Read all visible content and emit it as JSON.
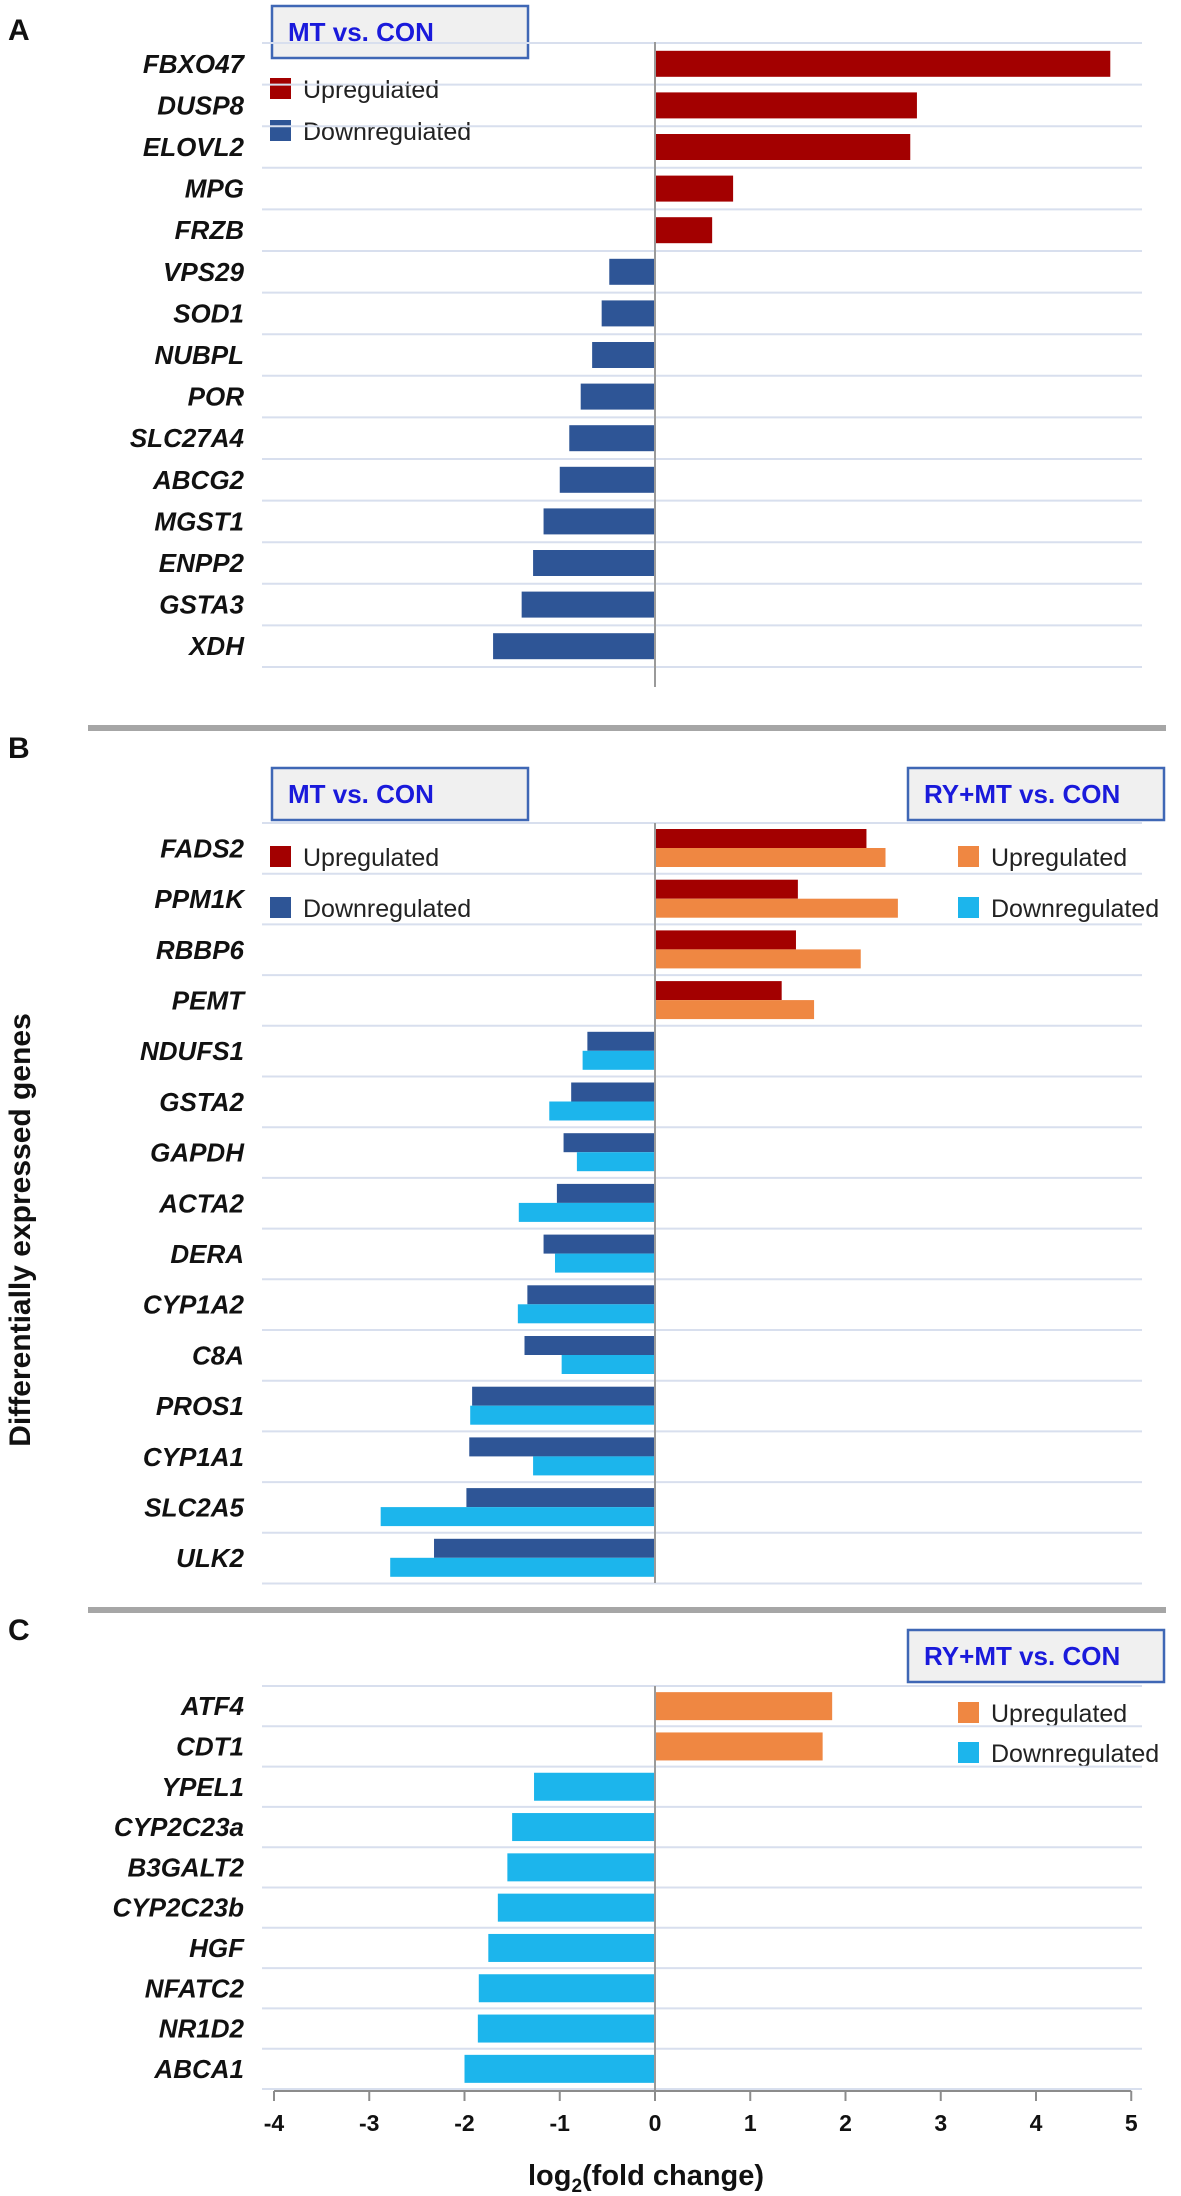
{
  "y_axis_title": "Differentially expressed genes",
  "colors": {
    "mt_up": "#a30000",
    "mt_down": "#2e5596",
    "rymt_up": "#ef8742",
    "rymt_down": "#1cb5ec",
    "box_border": "#3f67b5",
    "box_text": "#1a1adb"
  },
  "chart_data": [
    {
      "panel": "A",
      "type": "bar",
      "orientation": "horizontal",
      "comparisons": [
        "MT vs. CON"
      ],
      "legend": [
        {
          "label": "Upregulated",
          "color": "#a30000"
        },
        {
          "label": "Downregulated",
          "color": "#2e5596"
        }
      ],
      "categories": [
        "FBXO47",
        "DUSP8",
        "ELOVL2",
        "MPG",
        "FRZB",
        "VPS29",
        "SOD1",
        "NUBPL",
        "POR",
        "SLC27A4",
        "ABCG2",
        "MGST1",
        "ENPP2",
        "GSTA3",
        "XDH"
      ],
      "series": [
        {
          "name": "MT vs. CON",
          "values": [
            4.78,
            2.75,
            2.68,
            0.82,
            0.6,
            -0.48,
            -0.56,
            -0.66,
            -0.78,
            -0.9,
            -1.0,
            -1.17,
            -1.28,
            -1.4,
            -1.7
          ]
        }
      ],
      "xlim": [
        -4,
        5
      ]
    },
    {
      "panel": "B",
      "type": "bar",
      "orientation": "horizontal",
      "comparisons": [
        "MT vs. CON",
        "RY+MT vs. CON"
      ],
      "legend": [
        {
          "label": "Upregulated",
          "color": "#a30000"
        },
        {
          "label": "Downregulated",
          "color": "#2e5596"
        },
        {
          "label": "Upregulated",
          "color": "#ef8742"
        },
        {
          "label": "Downregulated",
          "color": "#1cb5ec"
        }
      ],
      "categories": [
        "FADS2",
        "PPM1K",
        "RBBP6",
        "PEMT",
        "NDUFS1",
        "GSTA2",
        "GAPDH",
        "ACTA2",
        "DERA",
        "CYP1A2",
        "C8A",
        "PROS1",
        "CYP1A1",
        "SLC2A5",
        "ULK2"
      ],
      "series": [
        {
          "name": "MT vs. CON",
          "values": [
            2.22,
            1.5,
            1.48,
            1.33,
            -0.71,
            -0.88,
            -0.96,
            -1.03,
            -1.17,
            -1.34,
            -1.37,
            -1.92,
            -1.95,
            -1.98,
            -2.32
          ]
        },
        {
          "name": "RY+MT vs. CON",
          "values": [
            2.42,
            2.55,
            2.16,
            1.67,
            -0.76,
            -1.11,
            -0.82,
            -1.43,
            -1.05,
            -1.44,
            -0.98,
            -1.94,
            -1.28,
            -2.88,
            -2.78
          ]
        }
      ],
      "xlim": [
        -4,
        5
      ]
    },
    {
      "panel": "C",
      "type": "bar",
      "orientation": "horizontal",
      "comparisons": [
        "RY+MT vs. CON"
      ],
      "legend": [
        {
          "label": "Upregulated",
          "color": "#ef8742"
        },
        {
          "label": "Downregulated",
          "color": "#1cb5ec"
        }
      ],
      "categories": [
        "ATF4",
        "CDT1",
        "YPEL1",
        "CYP2C23a",
        "B3GALT2",
        "CYP2C23b",
        "HGF",
        "NFATC2",
        "NR1D2",
        "ABCA1"
      ],
      "series": [
        {
          "name": "RY+MT vs. CON",
          "values": [
            1.86,
            1.76,
            -1.27,
            -1.5,
            -1.55,
            -1.65,
            -1.75,
            -1.85,
            -1.86,
            -2.0
          ]
        }
      ],
      "xlim": [
        -4,
        5
      ],
      "xticks": [
        -4,
        -3,
        -2,
        -1,
        0,
        1,
        2,
        3,
        4,
        5
      ],
      "xtick_labels": [
        "-4",
        "-3",
        "-2",
        "-1",
        "0",
        "1",
        "2",
        "3",
        "4",
        "5"
      ],
      "xlabel": "log",
      "xlabel_subscript": "2",
      "xlabel_suffix": "(fold change)"
    }
  ]
}
